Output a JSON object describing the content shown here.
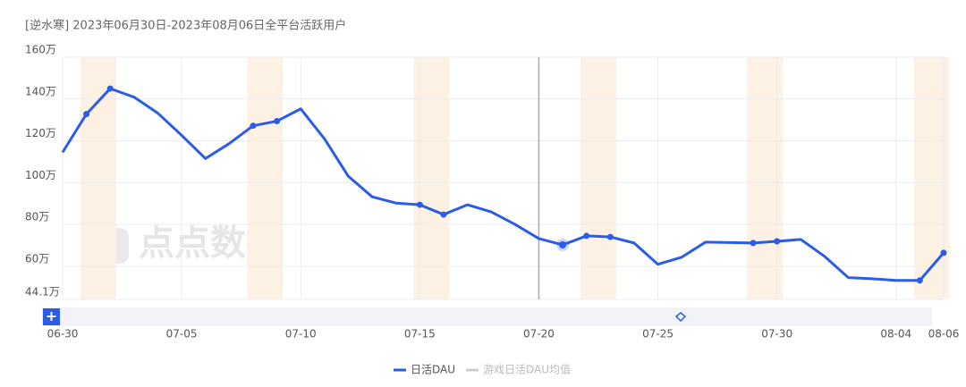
{
  "chart_data": {
    "type": "line",
    "title": "[逆水寒]  2023年06月30日-2023年08月06日全平台活跃用户",
    "watermark": "点点数据",
    "categories": [
      "06-30",
      null,
      null,
      null,
      null,
      "07-05",
      null,
      null,
      null,
      null,
      "07-10",
      null,
      null,
      null,
      null,
      "07-15",
      null,
      null,
      null,
      null,
      "07-20",
      null,
      null,
      null,
      null,
      "07-25",
      null,
      null,
      null,
      null,
      "07-30",
      null,
      null,
      null,
      null,
      "08-04",
      null,
      "08-06"
    ],
    "series": [
      {
        "name": "日活DAU",
        "color": "#2b5ce6",
        "values": [
          114.5,
          132.8,
          145,
          140.9,
          133.2,
          122.6,
          111.5,
          118.7,
          127.2,
          129.4,
          135.3,
          120.9,
          103,
          93.2,
          90.2,
          89.4,
          84.7,
          89.4,
          86,
          80,
          73.2,
          70.2,
          74.5,
          74,
          71.1,
          60.9,
          64.3,
          71.5,
          71.3,
          71.1,
          71.9,
          72.8,
          64.7,
          54.5,
          54,
          53.2,
          53.2,
          66.4
        ]
      }
    ],
    "inactive_legend": {
      "name": "游戏日活DAU均值",
      "color": "#cccccc"
    },
    "marker_indices": [
      1,
      2,
      8,
      9,
      15,
      16,
      22,
      23,
      29,
      30,
      36,
      37
    ],
    "active_index": 21,
    "crosshair_index": 20,
    "highlight_bands": [
      [
        1,
        2
      ],
      [
        8,
        9
      ],
      [
        15,
        16
      ],
      [
        22,
        23
      ],
      [
        29,
        30
      ],
      [
        36,
        37
      ]
    ],
    "ylim": [
      44.1,
      160
    ],
    "yticks": [
      {
        "value": 44.1,
        "label": "44.1万"
      },
      {
        "value": 60,
        "label": "60万"
      },
      {
        "value": 80,
        "label": "80万"
      },
      {
        "value": 100,
        "label": "100万"
      },
      {
        "value": 120,
        "label": "120万"
      },
      {
        "value": 140,
        "label": "140万"
      },
      {
        "value": 160,
        "label": "160万"
      }
    ],
    "grid": true
  }
}
